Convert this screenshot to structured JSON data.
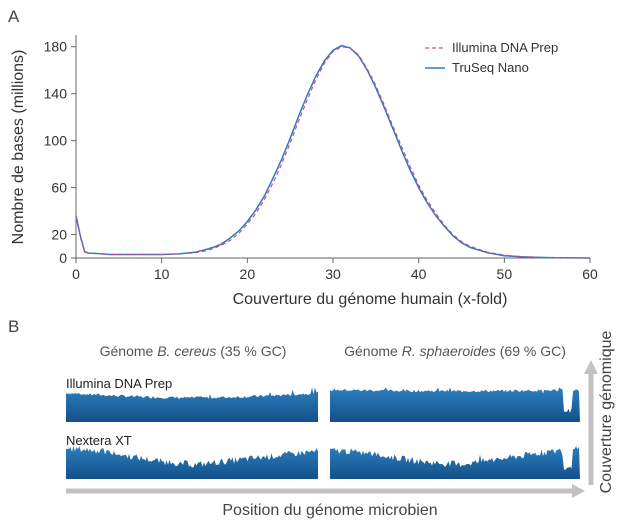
{
  "panel_a": {
    "letter": "A",
    "chart_data": {
      "type": "line",
      "xlabel": "Couverture du génome humain (x-fold)",
      "ylabel": "Nombre de bases (millions)",
      "xlim": [
        0,
        60
      ],
      "ylim": [
        0,
        190
      ],
      "x_ticks": [
        "0",
        "10",
        "20",
        "30",
        "40",
        "50",
        "60"
      ],
      "y_ticks": [
        "0",
        "20",
        "60",
        "100",
        "140",
        "180"
      ],
      "grid": false,
      "legend_position": "top-right",
      "series": [
        {
          "name": "Illumina DNA Prep",
          "color": "#c0508a",
          "style": "dashed",
          "x": [
            0,
            0.5,
            1,
            1.5,
            2,
            3,
            4,
            5,
            6,
            8,
            10,
            12,
            14,
            15,
            16,
            17,
            18,
            19,
            20,
            21,
            22,
            23,
            24,
            25,
            26,
            27,
            28,
            29,
            30,
            31,
            32,
            33,
            34,
            35,
            36,
            37,
            38,
            39,
            40,
            41,
            42,
            43,
            44,
            45,
            46,
            48,
            50,
            52,
            54,
            56,
            58,
            60
          ],
          "y": [
            35,
            18,
            5,
            4,
            4,
            3.5,
            3,
            3,
            3,
            3,
            3,
            3.5,
            4.5,
            6,
            8,
            11,
            15,
            21,
            29,
            38,
            50,
            64,
            80,
            98,
            117,
            135,
            152,
            166,
            176,
            180,
            179,
            173,
            161,
            147,
            130,
            112,
            95,
            78,
            62,
            49,
            38,
            28,
            20,
            14,
            10,
            5,
            2.5,
            1,
            0.5,
            0.2,
            0.1,
            0
          ]
        },
        {
          "name": "TruSeq Nano",
          "color": "#2f78c4",
          "style": "solid",
          "x": [
            0,
            0.5,
            1,
            1.5,
            2,
            3,
            4,
            5,
            6,
            8,
            10,
            12,
            14,
            15,
            16,
            17,
            18,
            19,
            20,
            21,
            22,
            23,
            24,
            25,
            26,
            27,
            28,
            29,
            30,
            31,
            32,
            33,
            34,
            35,
            36,
            37,
            38,
            39,
            40,
            41,
            42,
            43,
            44,
            45,
            46,
            48,
            50,
            52,
            54,
            56,
            58,
            60
          ],
          "y": [
            36,
            19,
            5.5,
            4,
            4,
            3.5,
            3,
            3,
            3,
            3,
            3,
            3.5,
            5,
            7,
            9,
            12,
            17,
            23,
            31,
            41,
            53,
            68,
            84,
            102,
            121,
            139,
            155,
            168,
            177,
            181,
            179,
            172,
            160,
            145,
            128,
            110,
            92,
            75,
            60,
            47,
            36,
            27,
            19,
            13,
            9,
            4.5,
            2,
            1,
            0.5,
            0.2,
            0.1,
            0
          ]
        }
      ]
    }
  },
  "panel_b": {
    "letter": "B",
    "chart_data": {
      "type": "area",
      "xlabel": "Position du génome microbien",
      "ylabel": "Couverture génomique",
      "columns": [
        {
          "prefix": "Génome ",
          "species": "B. cereus",
          "suffix": " (35 % GC)"
        },
        {
          "prefix": "Génome ",
          "species": "R. sphaeroides",
          "suffix": " (69 % GC)"
        }
      ],
      "rows": [
        {
          "label": "Illumina DNA Prep",
          "relative_coverage": {
            "left": [
              0.88,
              0.72,
              0.88
            ],
            "right": [
              0.97,
              0.93,
              0.98
            ]
          }
        },
        {
          "label": "Nextera XT",
          "relative_coverage": {
            "left": [
              0.92,
              0.42,
              0.85
            ],
            "right": [
              0.86,
              0.42,
              0.95
            ]
          }
        }
      ],
      "fill_color_top": "#2c7fbe",
      "fill_color_bottom": "#14508a"
    }
  }
}
